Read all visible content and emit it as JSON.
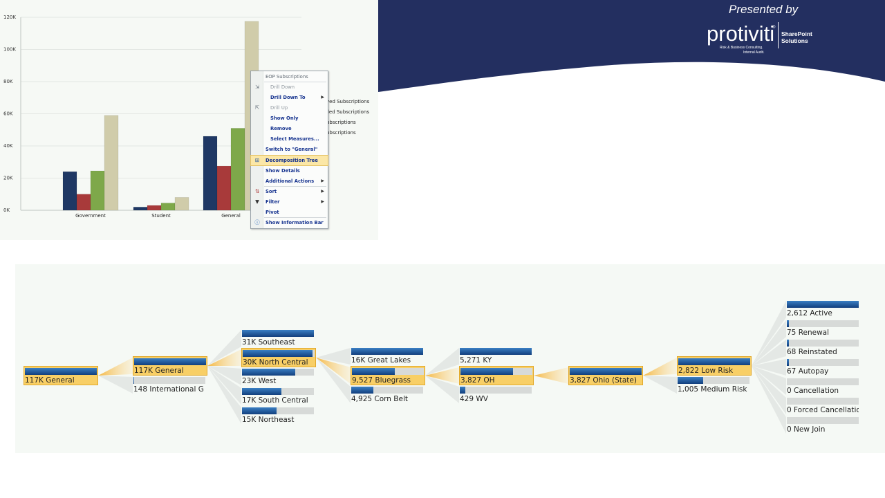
{
  "header": {
    "presented_by": "Presented by",
    "logo_word": "protiviti",
    "logo_registered": "®",
    "logo_tagline_1": "Risk & Business Consulting.",
    "logo_tagline_2": "Internal Audit.",
    "logo_division_1": "SharePoint",
    "logo_division_2": "Solutions",
    "colors": {
      "banner": "#232f60",
      "text": "#ffffff"
    }
  },
  "chart_data": {
    "type": "bar",
    "categories": [
      "Government",
      "Student",
      "General"
    ],
    "series": [
      {
        "color": "#1f3864",
        "values": [
          24000,
          2000,
          46000
        ]
      },
      {
        "color": "#a83a3a",
        "values": [
          10000,
          3000,
          27500
        ]
      },
      {
        "color": "#7ea84a",
        "values": [
          24500,
          4500,
          51000
        ]
      },
      {
        "color": "#d0ccaa",
        "values": [
          59000,
          8000,
          117500
        ]
      }
    ],
    "y_ticks": [
      "0K",
      "20K",
      "40K",
      "60K",
      "80K",
      "100K",
      "120K"
    ],
    "ylim": [
      0,
      120000
    ],
    "grid": true,
    "legend_partial": [
      "ved Subscriptions",
      "lled Subscriptions",
      "ubscriptions",
      "ubscriptions"
    ]
  },
  "context_menu": {
    "header": "EOP Subscriptions",
    "items": [
      {
        "label": "Drill Down",
        "icon": "drill-down-icon",
        "enabled": false
      },
      {
        "label": "Drill Down To",
        "submenu": true,
        "enabled": true
      },
      {
        "label": "Drill Up",
        "icon": "drill-up-icon",
        "enabled": false
      },
      {
        "label": "Show Only",
        "enabled": true
      },
      {
        "label": "Remove",
        "enabled": true
      },
      {
        "label": "Select Measures...",
        "enabled": true
      },
      {
        "label": "Switch to \"General\"",
        "enabled": true
      },
      {
        "label": "Decomposition Tree",
        "icon": "decomposition-tree-icon",
        "highlighted": true
      },
      {
        "label": "Show Details",
        "enabled": true
      },
      {
        "label": "Additional Actions",
        "submenu": true
      },
      {
        "label": "Sort",
        "icon": "sort-icon",
        "submenu": true
      },
      {
        "label": "Filter",
        "icon": "filter-icon",
        "submenu": true
      },
      {
        "label": "Pivot",
        "enabled": true
      },
      {
        "label": "Show Information Bar",
        "icon": "info-icon"
      }
    ]
  },
  "decomposition_tree": {
    "columns": [
      [
        {
          "label": "117K  General",
          "fill": 1.0,
          "selected": true
        }
      ],
      [
        {
          "label": "117K  General",
          "fill": 1.0,
          "selected": true
        },
        {
          "label": "148  International G",
          "fill": 0.01
        }
      ],
      [
        {
          "label": "31K  Southeast",
          "fill": 1.0
        },
        {
          "label": "30K  North Central",
          "fill": 0.97,
          "selected": true
        },
        {
          "label": "23K  West",
          "fill": 0.74
        },
        {
          "label": "17K  South Central",
          "fill": 0.55
        },
        {
          "label": "15K  Northeast",
          "fill": 0.48
        }
      ],
      [
        {
          "label": "16K  Great Lakes",
          "fill": 1.0
        },
        {
          "label": "9,527  Bluegrass",
          "fill": 0.6,
          "selected": true
        },
        {
          "label": "4,925  Corn Belt",
          "fill": 0.31
        }
      ],
      [
        {
          "label": "5,271  KY",
          "fill": 1.0
        },
        {
          "label": "3,827  OH",
          "fill": 0.73,
          "selected": true
        },
        {
          "label": "429  WV",
          "fill": 0.08
        }
      ],
      [
        {
          "label": "3,827  Ohio  (State)",
          "fill": 1.0,
          "selected": true
        }
      ],
      [
        {
          "label": "2,822  Low Risk",
          "fill": 1.0,
          "selected": true
        },
        {
          "label": "1,005  Medium Risk",
          "fill": 0.36
        }
      ],
      [
        {
          "label": "2,612  Active",
          "fill": 1.0
        },
        {
          "label": "75  Renewal",
          "fill": 0.03
        },
        {
          "label": "68  Reinstated",
          "fill": 0.026
        },
        {
          "label": "67  Autopay",
          "fill": 0.026
        },
        {
          "label": "0  Cancellation",
          "fill": 0
        },
        {
          "label": "0  Forced Cancellation",
          "fill": 0
        },
        {
          "label": "0  New Join",
          "fill": 0
        }
      ]
    ]
  }
}
